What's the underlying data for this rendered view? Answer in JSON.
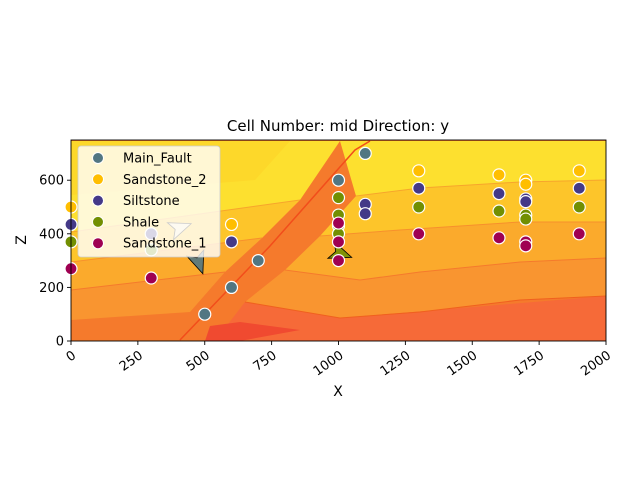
{
  "chart_data": {
    "type": "scatter",
    "title": "Cell Number: mid Direction: y",
    "xlabel": "X",
    "ylabel": "Z",
    "xlim": [
      0,
      2000
    ],
    "ylim": [
      0,
      750
    ],
    "xticks": [
      "0",
      "250",
      "500",
      "750",
      "1000",
      "1250",
      "1500",
      "1750",
      "2000"
    ],
    "yticks": [
      "0",
      "200",
      "400",
      "600"
    ],
    "grid": false,
    "legend_placement": "upper-left",
    "background_fill": "orange-yellow lithology contour fill",
    "series": [
      {
        "name": "Main_Fault",
        "color": "#527682",
        "points": [
          [
            700,
            300
          ],
          [
            600,
            200
          ],
          [
            500,
            100
          ],
          [
            1000,
            600
          ],
          [
            1100,
            700
          ]
        ]
      },
      {
        "name": "Sandstone_2",
        "color": "#ffbe00",
        "points": [
          [
            0,
            500
          ],
          [
            600,
            435
          ],
          [
            1300,
            635
          ],
          [
            1600,
            620
          ],
          [
            1700,
            600
          ],
          [
            1700,
            585
          ],
          [
            1900,
            635
          ]
        ]
      },
      {
        "name": "Siltstone",
        "color": "#443988",
        "points": [
          [
            0,
            435
          ],
          [
            300,
            400
          ],
          [
            600,
            370
          ],
          [
            1100,
            510
          ],
          [
            1100,
            475
          ],
          [
            1300,
            570
          ],
          [
            1600,
            550
          ],
          [
            1700,
            530
          ],
          [
            1700,
            520
          ],
          [
            1900,
            570
          ]
        ]
      },
      {
        "name": "Shale",
        "color": "#728f02",
        "points": [
          [
            0,
            370
          ],
          [
            300,
            340
          ],
          [
            1000,
            535
          ],
          [
            1000,
            470
          ],
          [
            1000,
            430
          ],
          [
            1000,
            400
          ],
          [
            1300,
            500
          ],
          [
            1600,
            485
          ],
          [
            1700,
            470
          ],
          [
            1700,
            455
          ],
          [
            1900,
            500
          ]
        ]
      },
      {
        "name": "Sandstone_1",
        "color": "#9f0052",
        "points": [
          [
            0,
            270
          ],
          [
            300,
            235
          ],
          [
            1000,
            440
          ],
          [
            1000,
            370
          ],
          [
            1000,
            300
          ],
          [
            1300,
            400
          ],
          [
            1600,
            385
          ],
          [
            1700,
            370
          ],
          [
            1700,
            355
          ],
          [
            1900,
            400
          ]
        ]
      }
    ],
    "orientations": [
      {
        "series": "Main_Fault",
        "x": 475,
        "y": 300,
        "color": "#527682",
        "rotation": 160
      },
      {
        "series": "Shale",
        "x": 1000,
        "y": 330,
        "color": "#728f02",
        "rotation": 110
      },
      {
        "series": "Siltstone",
        "x": 400,
        "y": 420,
        "color": "#f5e6c8",
        "rotation": 70
      }
    ]
  }
}
